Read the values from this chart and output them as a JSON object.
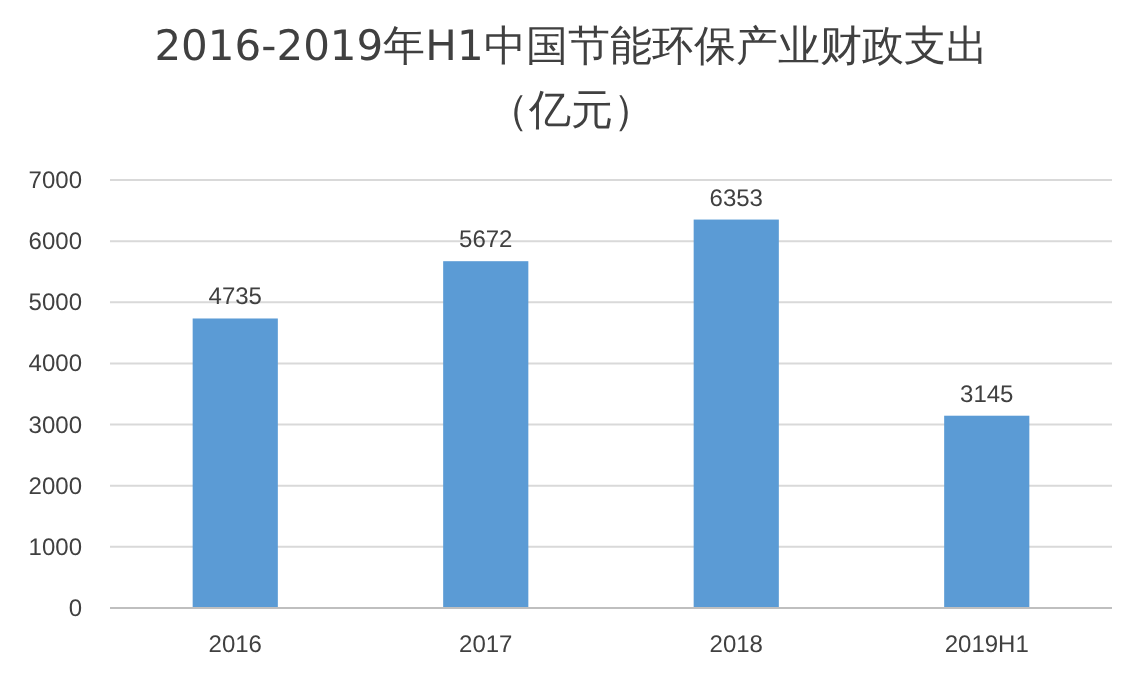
{
  "chart_data": {
    "type": "bar",
    "title": "2016-2019年H1中国节能环保产业财政支出",
    "subtitle": "（亿元）",
    "categories": [
      "2016",
      "2017",
      "2018",
      "2019H1"
    ],
    "values": [
      4735,
      5672,
      6353,
      3145
    ],
    "color": "#5b9bd5",
    "ylim": [
      0,
      7000
    ],
    "yticks": [
      0,
      1000,
      2000,
      3000,
      4000,
      5000,
      6000,
      7000
    ],
    "grid": "y",
    "data_labels": true
  }
}
